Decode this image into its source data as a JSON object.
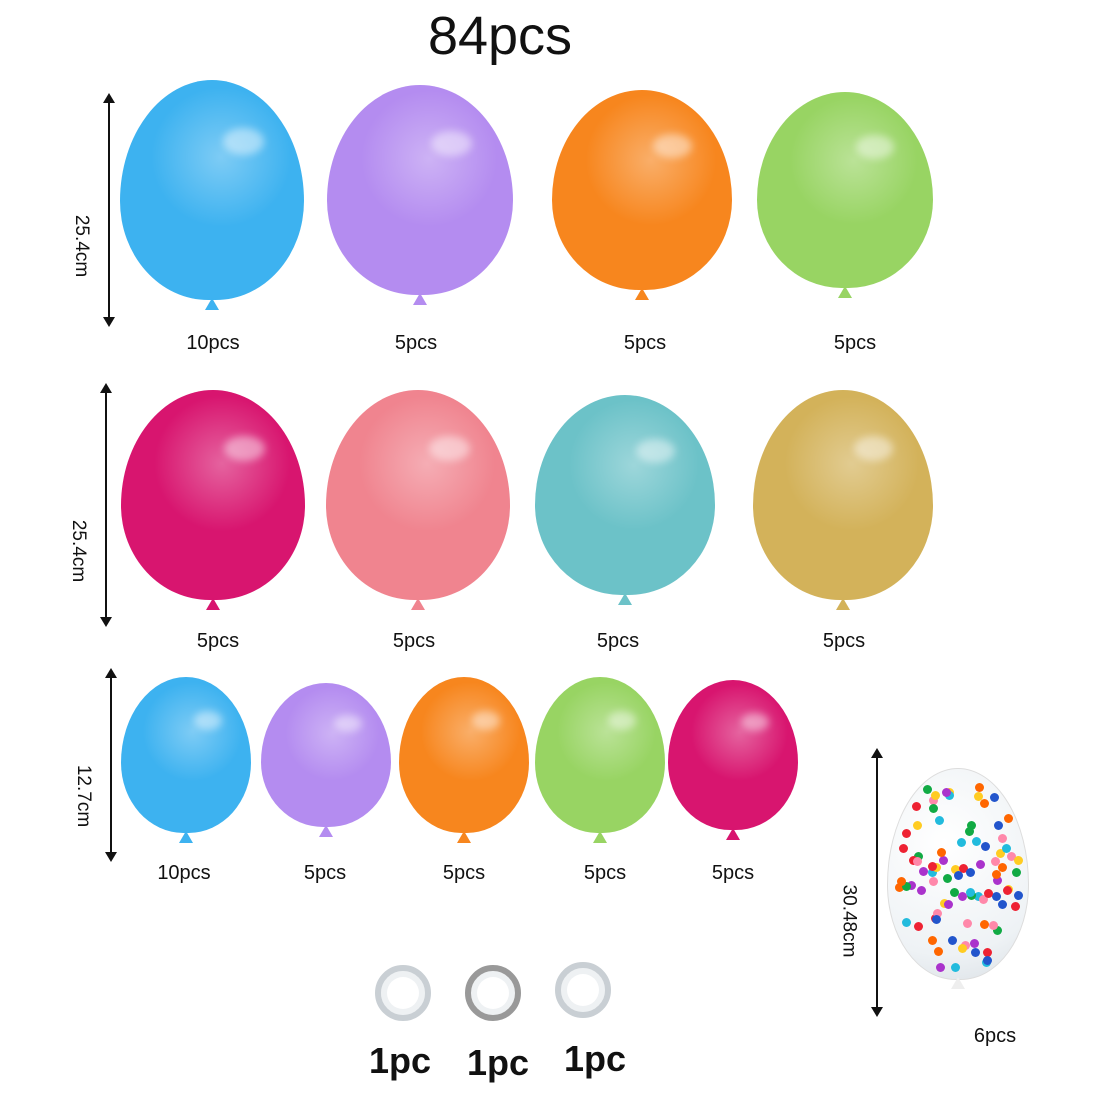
{
  "title": "84pcs",
  "rows": [
    {
      "dimension": "25.4cm",
      "balloons": [
        {
          "color": "#3db2f0",
          "count": "10pcs"
        },
        {
          "color": "#b48cf0",
          "count": "5pcs"
        },
        {
          "color": "#f7861e",
          "count": "5pcs"
        },
        {
          "color": "#98d463",
          "count": "5pcs"
        }
      ]
    },
    {
      "dimension": "25.4cm",
      "balloons": [
        {
          "color": "#d8156f",
          "count": "5pcs"
        },
        {
          "color": "#f0848f",
          "count": "5pcs"
        },
        {
          "color": "#6cc2c8",
          "count": "5pcs"
        },
        {
          "color": "#d3b25a",
          "count": "5pcs"
        }
      ]
    },
    {
      "dimension": "12.7cm",
      "balloons": [
        {
          "color": "#3db2f0",
          "count": "10pcs"
        },
        {
          "color": "#b48cf0",
          "count": "5pcs"
        },
        {
          "color": "#f7861e",
          "count": "5pcs"
        },
        {
          "color": "#98d463",
          "count": "5pcs"
        },
        {
          "color": "#d8156f",
          "count": "5pcs"
        }
      ]
    }
  ],
  "confetti": {
    "dimension": "30.48cm",
    "count": "6pcs"
  },
  "accessories": [
    {
      "count": "1pc"
    },
    {
      "count": "1pc"
    },
    {
      "count": "1pc"
    }
  ]
}
